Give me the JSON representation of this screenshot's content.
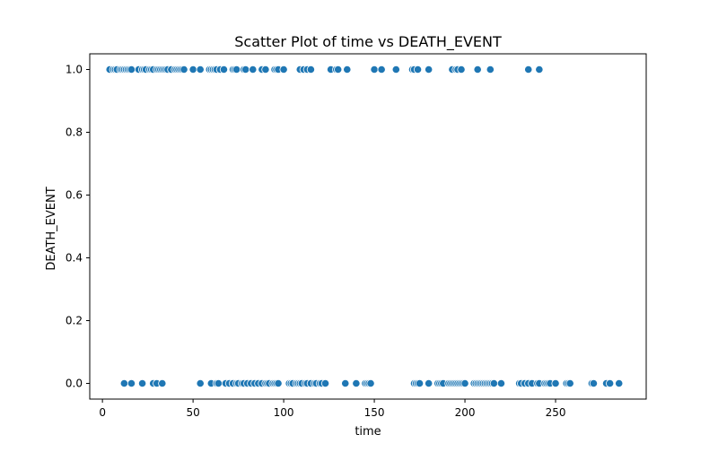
{
  "chart_data": {
    "type": "scatter",
    "title": "Scatter Plot of time vs DEATH_EVENT",
    "xlabel": "time",
    "ylabel": "DEATH_EVENT",
    "xlim": [
      -7,
      300
    ],
    "ylim": [
      -0.05,
      1.05
    ],
    "x_ticks": [
      0,
      50,
      100,
      150,
      200,
      250
    ],
    "y_ticks": [
      0.0,
      0.2,
      0.4,
      0.6,
      0.8,
      1.0
    ],
    "x_tick_labels": [
      "0",
      "50",
      "100",
      "150",
      "200",
      "250"
    ],
    "y_tick_labels": [
      "0.0",
      "0.2",
      "0.4",
      "0.6",
      "0.8",
      "1.0"
    ],
    "grid": false,
    "marker_color": "#1f77b4",
    "series": [
      {
        "name": "",
        "points": [
          [
            4,
            1
          ],
          [
            6,
            1
          ],
          [
            7,
            1
          ],
          [
            8,
            1
          ],
          [
            10,
            1
          ],
          [
            11,
            1
          ],
          [
            12,
            1
          ],
          [
            13,
            1
          ],
          [
            14,
            1
          ],
          [
            15,
            1
          ],
          [
            16,
            1
          ],
          [
            20,
            1
          ],
          [
            22,
            1
          ],
          [
            23,
            1
          ],
          [
            24,
            1
          ],
          [
            26,
            1
          ],
          [
            27,
            1
          ],
          [
            28,
            1
          ],
          [
            30,
            1
          ],
          [
            31,
            1
          ],
          [
            32,
            1
          ],
          [
            33,
            1
          ],
          [
            34,
            1
          ],
          [
            35,
            1
          ],
          [
            36,
            1
          ],
          [
            38,
            1
          ],
          [
            40,
            1
          ],
          [
            41,
            1
          ],
          [
            42,
            1
          ],
          [
            43,
            1
          ],
          [
            44,
            1
          ],
          [
            45,
            1
          ],
          [
            50,
            1
          ],
          [
            54,
            1
          ],
          [
            59,
            1
          ],
          [
            60,
            1
          ],
          [
            61,
            1
          ],
          [
            62,
            1
          ],
          [
            63,
            1
          ],
          [
            65,
            1
          ],
          [
            67,
            1
          ],
          [
            72,
            1
          ],
          [
            73,
            1
          ],
          [
            74,
            1
          ],
          [
            78,
            1
          ],
          [
            79,
            1
          ],
          [
            83,
            1
          ],
          [
            88,
            1
          ],
          [
            90,
            1
          ],
          [
            95,
            1
          ],
          [
            96,
            1
          ],
          [
            97,
            1
          ],
          [
            100,
            1
          ],
          [
            109,
            1
          ],
          [
            111,
            1
          ],
          [
            113,
            1
          ],
          [
            115,
            1
          ],
          [
            126,
            1
          ],
          [
            129,
            1
          ],
          [
            130,
            1
          ],
          [
            135,
            1
          ],
          [
            150,
            1
          ],
          [
            154,
            1
          ],
          [
            162,
            1
          ],
          [
            171,
            1
          ],
          [
            172,
            1
          ],
          [
            174,
            1
          ],
          [
            180,
            1
          ],
          [
            193,
            1
          ],
          [
            195,
            1
          ],
          [
            196,
            1
          ],
          [
            198,
            1
          ],
          [
            207,
            1
          ],
          [
            214,
            1
          ],
          [
            235,
            1
          ],
          [
            241,
            1
          ],
          [
            12,
            0
          ],
          [
            16,
            0
          ],
          [
            22,
            0
          ],
          [
            28,
            0
          ],
          [
            30,
            0
          ],
          [
            33,
            0
          ],
          [
            54,
            0
          ],
          [
            60,
            0
          ],
          [
            63,
            0
          ],
          [
            64,
            0
          ],
          [
            68,
            0
          ],
          [
            70,
            0
          ],
          [
            72,
            0
          ],
          [
            74,
            0
          ],
          [
            75,
            0
          ],
          [
            77,
            0
          ],
          [
            78,
            0
          ],
          [
            80,
            0
          ],
          [
            82,
            0
          ],
          [
            84,
            0
          ],
          [
            86,
            0
          ],
          [
            88,
            0
          ],
          [
            90,
            0
          ],
          [
            91,
            0
          ],
          [
            92,
            0
          ],
          [
            94,
            0
          ],
          [
            95,
            0
          ],
          [
            96,
            0
          ],
          [
            97,
            0
          ],
          [
            103,
            0
          ],
          [
            104,
            0
          ],
          [
            105,
            0
          ],
          [
            107,
            0
          ],
          [
            108,
            0
          ],
          [
            109,
            0
          ],
          [
            110,
            0
          ],
          [
            112,
            0
          ],
          [
            113,
            0
          ],
          [
            115,
            0
          ],
          [
            117,
            0
          ],
          [
            118,
            0
          ],
          [
            120,
            0
          ],
          [
            121,
            0
          ],
          [
            123,
            0
          ],
          [
            134,
            0
          ],
          [
            140,
            0
          ],
          [
            145,
            0
          ],
          [
            146,
            0
          ],
          [
            147,
            0
          ],
          [
            148,
            0
          ],
          [
            172,
            0
          ],
          [
            173,
            0
          ],
          [
            174,
            0
          ],
          [
            175,
            0
          ],
          [
            180,
            0
          ],
          [
            185,
            0
          ],
          [
            186,
            0
          ],
          [
            187,
            0
          ],
          [
            188,
            0
          ],
          [
            191,
            0
          ],
          [
            192,
            0
          ],
          [
            193,
            0
          ],
          [
            194,
            0
          ],
          [
            195,
            0
          ],
          [
            196,
            0
          ],
          [
            197,
            0
          ],
          [
            198,
            0
          ],
          [
            199,
            0
          ],
          [
            200,
            0
          ],
          [
            205,
            0
          ],
          [
            206,
            0
          ],
          [
            207,
            0
          ],
          [
            208,
            0
          ],
          [
            209,
            0
          ],
          [
            210,
            0
          ],
          [
            211,
            0
          ],
          [
            212,
            0
          ],
          [
            213,
            0
          ],
          [
            214,
            0
          ],
          [
            215,
            0
          ],
          [
            216,
            0
          ],
          [
            220,
            0
          ],
          [
            230,
            0
          ],
          [
            231,
            0
          ],
          [
            233,
            0
          ],
          [
            235,
            0
          ],
          [
            237,
            0
          ],
          [
            240,
            0
          ],
          [
            241,
            0
          ],
          [
            244,
            0
          ],
          [
            245,
            0
          ],
          [
            246,
            0
          ],
          [
            247,
            0
          ],
          [
            250,
            0
          ],
          [
            256,
            0
          ],
          [
            257,
            0
          ],
          [
            258,
            0
          ],
          [
            270,
            0
          ],
          [
            271,
            0
          ],
          [
            278,
            0
          ],
          [
            280,
            0
          ],
          [
            285,
            0
          ]
        ]
      }
    ]
  }
}
